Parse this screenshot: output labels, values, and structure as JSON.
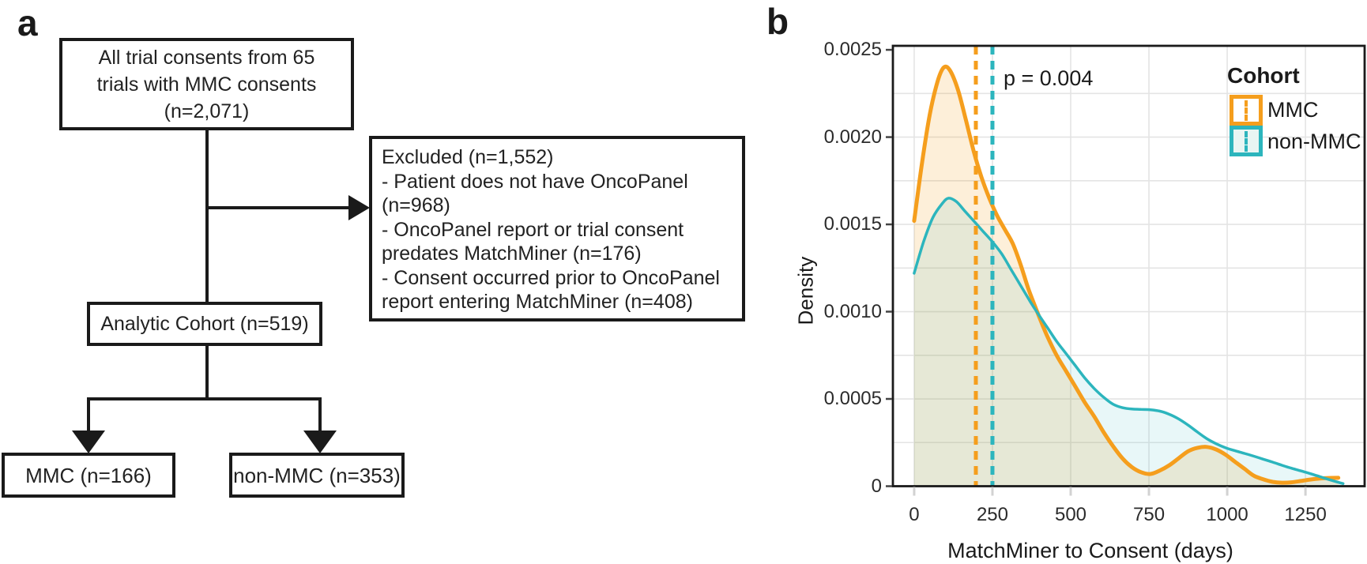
{
  "figure": {
    "panel_a_label": "a",
    "panel_b_label": "b"
  },
  "flowchart": {
    "top_box": {
      "lines": [
        "All trial consents from 65",
        "trials with MMC consents",
        "(n=2,071)"
      ]
    },
    "excluded_box": {
      "lines": [
        "Excluded (n=1,552)",
        "- Patient does not have OncoPanel",
        "(n=968)",
        "- OncoPanel report or trial consent",
        "predates MatchMiner (n=176)",
        "- Consent occurred prior to OncoPanel",
        "report entering MatchMiner (n=408)"
      ]
    },
    "analytic_box": {
      "text": "Analytic Cohort (n=519)"
    },
    "mmc_box": {
      "text": "MMC (n=166)"
    },
    "non_mmc_box": {
      "text": "non-MMC (n=353)"
    }
  },
  "chart_data": {
    "type": "area",
    "title": "",
    "xlabel": "MatchMiner to Consent (days)",
    "ylabel": "Density",
    "xlim": [
      -68,
      1439
    ],
    "ylim": [
      0,
      0.002523
    ],
    "xticks": [
      0,
      250,
      500,
      750,
      1000,
      1250
    ],
    "xtick_labels": [
      "0",
      "250",
      "500",
      "750",
      "1000",
      "1250"
    ],
    "yticks": [
      0,
      0.0005,
      0.001,
      0.0015,
      0.002,
      0.0025
    ],
    "ytick_labels": [
      "0",
      "0.0005",
      "0.0010",
      "0.0015",
      "0.0020",
      "0.0025"
    ],
    "grid": {
      "h_step": 0.00025,
      "v_step": 250,
      "color": "#e4e4e4",
      "on": true
    },
    "annotation": {
      "text": "p = 0.004"
    },
    "vlines": [
      {
        "series": "MMC",
        "x": 197,
        "color": "#F59E1D",
        "style": "dashed"
      },
      {
        "series": "non-MMC",
        "x": 250,
        "color": "#2CB5BD",
        "style": "dashed"
      }
    ],
    "legend": {
      "title": "Cohort",
      "position": "top-right",
      "entries": [
        {
          "label": "MMC",
          "color": "#F59E1D",
          "fill": "#ffffff"
        },
        {
          "label": "non-MMC",
          "color": "#2CB5BD",
          "fill": "#e8f5f3"
        }
      ]
    },
    "series": [
      {
        "name": "MMC",
        "color": "#F59E1D",
        "fill_rgba": "rgba(245,158,29,0.17)",
        "stroke_width": 5,
        "points": [
          [
            0,
            0.00152
          ],
          [
            25,
            0.00185
          ],
          [
            50,
            0.00213
          ],
          [
            75,
            0.00232
          ],
          [
            95,
            0.0024
          ],
          [
            115,
            0.00238
          ],
          [
            140,
            0.00227
          ],
          [
            165,
            0.0021
          ],
          [
            190,
            0.00192
          ],
          [
            215,
            0.00177
          ],
          [
            240,
            0.00165
          ],
          [
            265,
            0.00155
          ],
          [
            290,
            0.00147
          ],
          [
            315,
            0.00139
          ],
          [
            340,
            0.00127
          ],
          [
            365,
            0.00113
          ],
          [
            395,
            0.00099
          ],
          [
            425,
            0.00086
          ],
          [
            455,
            0.00075
          ],
          [
            485,
            0.00066
          ],
          [
            515,
            0.00057
          ],
          [
            545,
            0.00048
          ],
          [
            575,
            0.0004
          ],
          [
            605,
            0.00031
          ],
          [
            635,
            0.00023
          ],
          [
            665,
            0.00016
          ],
          [
            695,
            0.00011
          ],
          [
            725,
            8e-05
          ],
          [
            755,
            7e-05
          ],
          [
            785,
            9e-05
          ],
          [
            815,
            0.00012
          ],
          [
            845,
            0.00016
          ],
          [
            875,
            0.0002
          ],
          [
            905,
            0.00022
          ],
          [
            935,
            0.000225
          ],
          [
            965,
            0.00021
          ],
          [
            995,
            0.00018
          ],
          [
            1025,
            0.00014
          ],
          [
            1055,
            0.0001
          ],
          [
            1085,
            6e-05
          ],
          [
            1115,
            4e-05
          ],
          [
            1145,
            2.5e-05
          ],
          [
            1175,
            2e-05
          ],
          [
            1205,
            2.2e-05
          ],
          [
            1235,
            3e-05
          ],
          [
            1265,
            3.8e-05
          ],
          [
            1295,
            4.4e-05
          ],
          [
            1325,
            4.7e-05
          ],
          [
            1355,
            4.8e-05
          ]
        ]
      },
      {
        "name": "non-MMC",
        "color": "#2CB5BD",
        "fill_rgba": "rgba(44,181,189,0.11)",
        "stroke_width": 3.5,
        "points": [
          [
            0,
            0.00122
          ],
          [
            30,
            0.0014
          ],
          [
            60,
            0.00154
          ],
          [
            90,
            0.00162
          ],
          [
            110,
            0.00165
          ],
          [
            135,
            0.00163
          ],
          [
            160,
            0.00158
          ],
          [
            190,
            0.00152
          ],
          [
            220,
            0.00146
          ],
          [
            250,
            0.0014
          ],
          [
            280,
            0.00133
          ],
          [
            310,
            0.00124
          ],
          [
            340,
            0.00115
          ],
          [
            370,
            0.00106
          ],
          [
            395,
            0.00099
          ],
          [
            425,
            0.00091
          ],
          [
            455,
            0.00083
          ],
          [
            485,
            0.00076
          ],
          [
            515,
            0.00069
          ],
          [
            545,
            0.00062
          ],
          [
            575,
            0.00056
          ],
          [
            605,
            0.00051
          ],
          [
            635,
            0.00047
          ],
          [
            665,
            0.00045
          ],
          [
            695,
            0.000442
          ],
          [
            725,
            0.00044
          ],
          [
            755,
            0.000438
          ],
          [
            785,
            0.00043
          ],
          [
            815,
            0.000412
          ],
          [
            845,
            0.000385
          ],
          [
            875,
            0.00035
          ],
          [
            905,
            0.00031
          ],
          [
            935,
            0.000272
          ],
          [
            965,
            0.000243
          ],
          [
            995,
            0.00022
          ],
          [
            1025,
            0.000203
          ],
          [
            1055,
            0.000188
          ],
          [
            1085,
            0.000172
          ],
          [
            1115,
            0.000155
          ],
          [
            1145,
            0.000138
          ],
          [
            1175,
            0.00012
          ],
          [
            1205,
            0.000103
          ],
          [
            1235,
            8.8e-05
          ],
          [
            1265,
            7.2e-05
          ],
          [
            1295,
            5.5e-05
          ],
          [
            1325,
            3.8e-05
          ],
          [
            1355,
            2.2e-05
          ],
          [
            1370,
            1.5e-05
          ]
        ]
      }
    ]
  }
}
